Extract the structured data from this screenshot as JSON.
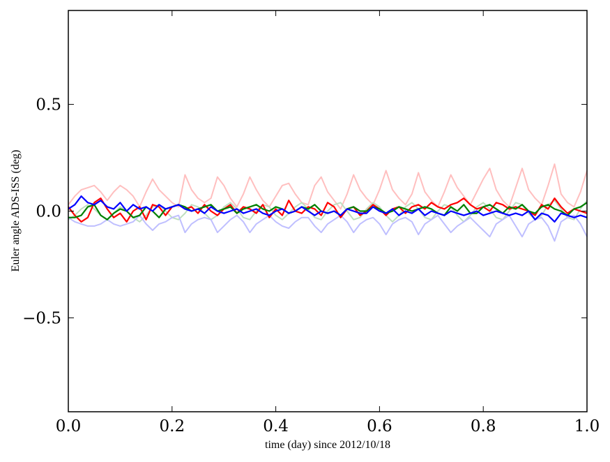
{
  "chart_data": {
    "type": "line",
    "title": "",
    "xlabel": "time (day) since 2012/10/18",
    "ylabel": "Euler angle ADS-ISS (deg)",
    "xlim": [
      0,
      1
    ],
    "ylim": [
      -0.94,
      0.94
    ],
    "grid": false,
    "legend": "none",
    "x_ticks": [
      0.0,
      0.2,
      0.4,
      0.6,
      0.8,
      1.0
    ],
    "x_tick_labels": [
      "0.0",
      "0.2",
      "0.4",
      "0.6",
      "0.8",
      "1.0"
    ],
    "y_ticks": [
      0.5,
      0.0,
      -0.5
    ],
    "y_tick_labels": [
      "0.5",
      "0.0",
      "−0.5"
    ],
    "x": [
      0,
      0.0125,
      0.025,
      0.0375,
      0.05,
      0.0625,
      0.075,
      0.0875,
      0.1,
      0.1125,
      0.125,
      0.1375,
      0.15,
      0.1625,
      0.175,
      0.1875,
      0.2,
      0.2125,
      0.225,
      0.2375,
      0.25,
      0.2625,
      0.275,
      0.2875,
      0.3,
      0.3125,
      0.325,
      0.3375,
      0.35,
      0.3625,
      0.375,
      0.3875,
      0.4,
      0.4125,
      0.425,
      0.4375,
      0.45,
      0.4625,
      0.475,
      0.4875,
      0.5,
      0.5125,
      0.525,
      0.5375,
      0.55,
      0.5625,
      0.575,
      0.5875,
      0.6,
      0.6125,
      0.625,
      0.6375,
      0.65,
      0.6625,
      0.675,
      0.6875,
      0.7,
      0.7125,
      0.725,
      0.7375,
      0.75,
      0.7625,
      0.775,
      0.7875,
      0.8,
      0.8125,
      0.825,
      0.8375,
      0.85,
      0.8625,
      0.875,
      0.8875,
      0.9,
      0.9125,
      0.925,
      0.9375,
      0.95,
      0.9625,
      0.975,
      0.9875,
      1.0
    ],
    "series": [
      {
        "color": "#ffbfbf",
        "values": [
          0.03,
          0.07,
          0.1,
          0.11,
          0.12,
          0.09,
          0.05,
          0.09,
          0.12,
          0.1,
          0.07,
          0.02,
          0.09,
          0.15,
          0.1,
          0.07,
          0.04,
          0.02,
          0.17,
          0.1,
          0.06,
          0.04,
          0.06,
          0.16,
          0.12,
          0.06,
          0.02,
          0.08,
          0.16,
          0.1,
          0.05,
          0.02,
          0.07,
          0.12,
          0.13,
          0.08,
          0.04,
          0.03,
          0.12,
          0.16,
          0.09,
          0.05,
          0.01,
          0.08,
          0.17,
          0.1,
          0.06,
          0.03,
          0.1,
          0.19,
          0.1,
          0.06,
          0.03,
          0.08,
          0.18,
          0.09,
          0.05,
          0.02,
          0.09,
          0.17,
          0.11,
          0.07,
          0.03,
          0.09,
          0.15,
          0.2,
          0.1,
          0.05,
          0.02,
          0.11,
          0.2,
          0.1,
          0.06,
          0.03,
          0.12,
          0.22,
          0.08,
          0.04,
          0.02,
          0.09,
          0.19
        ]
      },
      {
        "color": "#bfdfbf",
        "values": [
          -0.04,
          -0.02,
          0.01,
          0.03,
          0.01,
          -0.02,
          -0.04,
          -0.01,
          0.02,
          0.0,
          -0.03,
          -0.05,
          -0.02,
          0.02,
          0.03,
          0.0,
          -0.03,
          -0.04,
          -0.01,
          0.03,
          0.02,
          -0.01,
          -0.04,
          -0.02,
          0.02,
          0.04,
          0.01,
          -0.03,
          -0.04,
          0.0,
          0.03,
          0.02,
          -0.02,
          -0.04,
          -0.01,
          0.02,
          0.04,
          0.01,
          -0.03,
          -0.04,
          0.0,
          0.03,
          0.04,
          0.0,
          -0.04,
          -0.03,
          0.01,
          0.04,
          0.02,
          -0.02,
          -0.05,
          -0.02,
          0.02,
          0.04,
          0.01,
          -0.03,
          -0.04,
          0.0,
          0.03,
          0.02,
          -0.02,
          -0.05,
          -0.02,
          0.02,
          0.04,
          0.01,
          -0.03,
          -0.04,
          0.0,
          0.04,
          0.03,
          -0.01,
          -0.04,
          -0.02,
          0.03,
          0.05,
          0.01,
          -0.03,
          -0.04,
          0.01,
          0.05
        ]
      },
      {
        "color": "#bfbfff",
        "values": [
          -0.03,
          -0.05,
          -0.06,
          -0.07,
          -0.07,
          -0.06,
          -0.04,
          -0.06,
          -0.07,
          -0.06,
          -0.05,
          -0.02,
          -0.06,
          -0.09,
          -0.06,
          -0.05,
          -0.03,
          -0.02,
          -0.1,
          -0.06,
          -0.04,
          -0.03,
          -0.04,
          -0.1,
          -0.07,
          -0.04,
          -0.02,
          -0.05,
          -0.1,
          -0.06,
          -0.04,
          -0.02,
          -0.05,
          -0.07,
          -0.08,
          -0.05,
          -0.03,
          -0.03,
          -0.07,
          -0.1,
          -0.06,
          -0.04,
          -0.02,
          -0.05,
          -0.1,
          -0.06,
          -0.04,
          -0.03,
          -0.06,
          -0.11,
          -0.06,
          -0.04,
          -0.03,
          -0.05,
          -0.11,
          -0.06,
          -0.04,
          -0.02,
          -0.06,
          -0.1,
          -0.07,
          -0.05,
          -0.03,
          -0.06,
          -0.09,
          -0.12,
          -0.06,
          -0.04,
          -0.02,
          -0.07,
          -0.12,
          -0.06,
          -0.04,
          -0.03,
          -0.07,
          -0.14,
          -0.05,
          -0.03,
          -0.02,
          -0.06,
          -0.12
        ]
      },
      {
        "color": "#ff0000",
        "values": [
          0.02,
          -0.02,
          -0.05,
          -0.03,
          0.04,
          0.06,
          0.01,
          -0.03,
          -0.01,
          -0.05,
          0.0,
          0.02,
          -0.04,
          0.03,
          0.02,
          -0.02,
          0.02,
          0.03,
          0.01,
          0.02,
          -0.01,
          0.03,
          0.0,
          -0.02,
          0.01,
          0.03,
          -0.01,
          0.02,
          0.01,
          -0.01,
          0.03,
          -0.03,
          0.01,
          -0.02,
          0.05,
          0.0,
          -0.01,
          0.02,
          0.01,
          -0.02,
          0.04,
          0.02,
          -0.03,
          0.01,
          0.02,
          -0.02,
          0.0,
          0.03,
          0.01,
          -0.02,
          0.01,
          0.02,
          -0.01,
          0.02,
          0.03,
          0.01,
          0.04,
          0.02,
          0.01,
          0.03,
          0.04,
          0.06,
          0.03,
          0.01,
          0.02,
          0.0,
          0.04,
          0.03,
          0.01,
          0.02,
          0.01,
          0.0,
          -0.02,
          0.03,
          0.01,
          0.06,
          0.02,
          -0.01,
          0.01,
          0.0,
          -0.01
        ]
      },
      {
        "color": "#008000",
        "values": [
          -0.03,
          -0.03,
          -0.02,
          0.02,
          0.03,
          -0.02,
          -0.04,
          -0.01,
          0.01,
          0.0,
          -0.03,
          -0.02,
          0.02,
          0.0,
          -0.03,
          0.01,
          0.02,
          0.03,
          0.02,
          0.0,
          0.01,
          0.02,
          0.03,
          0.0,
          0.01,
          0.02,
          -0.01,
          0.01,
          0.02,
          0.03,
          0.01,
          0.0,
          0.02,
          0.01,
          -0.01,
          0.0,
          0.02,
          0.01,
          0.03,
          0.0,
          -0.01,
          0.0,
          -0.02,
          0.01,
          0.02,
          0.0,
          0.0,
          0.02,
          0.01,
          -0.01,
          0.0,
          0.02,
          0.01,
          0.0,
          0.01,
          0.02,
          0.01,
          -0.01,
          -0.02,
          0.02,
          0.0,
          0.03,
          -0.01,
          -0.01,
          0.02,
          0.03,
          0.01,
          -0.01,
          0.02,
          0.01,
          0.03,
          0.0,
          -0.01,
          0.02,
          0.03,
          0.01,
          0.0,
          -0.02,
          0.01,
          0.02,
          0.04
        ]
      },
      {
        "color": "#0000ff",
        "values": [
          0.01,
          0.03,
          0.07,
          0.04,
          0.03,
          0.05,
          0.02,
          0.01,
          0.04,
          0.0,
          0.03,
          0.01,
          0.02,
          0.0,
          0.03,
          0.01,
          0.02,
          0.03,
          0.01,
          0.0,
          0.01,
          -0.01,
          0.02,
          0.0,
          -0.01,
          0.0,
          0.01,
          -0.01,
          0.0,
          0.01,
          -0.01,
          -0.02,
          0.0,
          0.01,
          -0.01,
          0.0,
          0.02,
          0.0,
          -0.02,
          0.0,
          -0.01,
          0.0,
          -0.02,
          0.01,
          0.0,
          -0.01,
          -0.01,
          0.02,
          0.0,
          -0.01,
          0.01,
          -0.02,
          0.0,
          -0.01,
          0.01,
          -0.02,
          0.0,
          -0.01,
          -0.02,
          0.0,
          -0.01,
          -0.02,
          -0.01,
          0.0,
          -0.02,
          -0.01,
          0.0,
          -0.01,
          -0.02,
          -0.01,
          -0.02,
          0.0,
          -0.04,
          -0.01,
          -0.02,
          -0.05,
          -0.01,
          -0.02,
          -0.03,
          -0.02,
          -0.03
        ]
      }
    ]
  }
}
